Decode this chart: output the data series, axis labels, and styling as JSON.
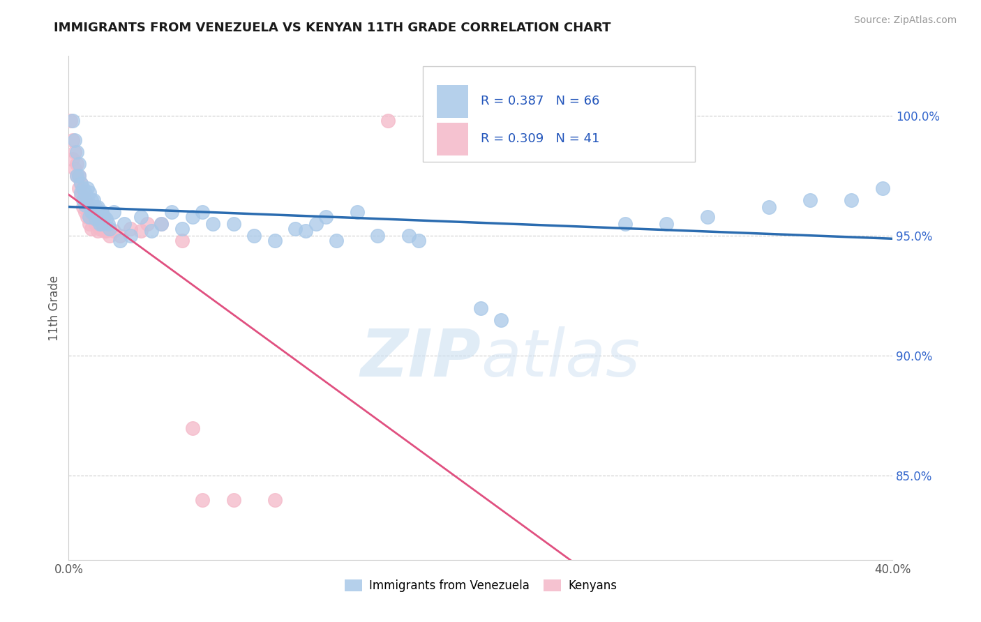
{
  "title": "IMMIGRANTS FROM VENEZUELA VS KENYAN 11TH GRADE CORRELATION CHART",
  "source": "Source: ZipAtlas.com",
  "ylabel": "11th Grade",
  "xlim": [
    0.0,
    0.4
  ],
  "ylim": [
    0.815,
    1.025
  ],
  "yticks_right": [
    1.0,
    0.95,
    0.9,
    0.85
  ],
  "yticklabels_right": [
    "100.0%",
    "95.0%",
    "90.0%",
    "85.0%"
  ],
  "watermark_zip": "ZIP",
  "watermark_atlas": "atlas",
  "blue_color": "#a8c8e8",
  "pink_color": "#f4b8c8",
  "blue_line_color": "#2b6cb0",
  "pink_line_color": "#e05080",
  "blue_scatter": [
    [
      0.002,
      0.998
    ],
    [
      0.003,
      0.99
    ],
    [
      0.004,
      0.985
    ],
    [
      0.004,
      0.975
    ],
    [
      0.005,
      0.98
    ],
    [
      0.005,
      0.975
    ],
    [
      0.006,
      0.972
    ],
    [
      0.006,
      0.968
    ],
    [
      0.007,
      0.97
    ],
    [
      0.007,
      0.965
    ],
    [
      0.008,
      0.968
    ],
    [
      0.008,
      0.963
    ],
    [
      0.009,
      0.97
    ],
    [
      0.009,
      0.965
    ],
    [
      0.01,
      0.968
    ],
    [
      0.01,
      0.963
    ],
    [
      0.01,
      0.958
    ],
    [
      0.011,
      0.965
    ],
    [
      0.011,
      0.96
    ],
    [
      0.012,
      0.965
    ],
    [
      0.012,
      0.96
    ],
    [
      0.013,
      0.962
    ],
    [
      0.013,
      0.957
    ],
    [
      0.014,
      0.962
    ],
    [
      0.014,
      0.958
    ],
    [
      0.015,
      0.96
    ],
    [
      0.015,
      0.955
    ],
    [
      0.016,
      0.96
    ],
    [
      0.016,
      0.955
    ],
    [
      0.017,
      0.958
    ],
    [
      0.018,
      0.957
    ],
    [
      0.019,
      0.955
    ],
    [
      0.02,
      0.953
    ],
    [
      0.022,
      0.96
    ],
    [
      0.025,
      0.948
    ],
    [
      0.027,
      0.955
    ],
    [
      0.03,
      0.95
    ],
    [
      0.035,
      0.958
    ],
    [
      0.04,
      0.952
    ],
    [
      0.045,
      0.955
    ],
    [
      0.05,
      0.96
    ],
    [
      0.055,
      0.953
    ],
    [
      0.06,
      0.958
    ],
    [
      0.065,
      0.96
    ],
    [
      0.07,
      0.955
    ],
    [
      0.08,
      0.955
    ],
    [
      0.09,
      0.95
    ],
    [
      0.1,
      0.948
    ],
    [
      0.11,
      0.953
    ],
    [
      0.115,
      0.952
    ],
    [
      0.12,
      0.955
    ],
    [
      0.125,
      0.958
    ],
    [
      0.13,
      0.948
    ],
    [
      0.14,
      0.96
    ],
    [
      0.15,
      0.95
    ],
    [
      0.165,
      0.95
    ],
    [
      0.17,
      0.948
    ],
    [
      0.2,
      0.92
    ],
    [
      0.21,
      0.915
    ],
    [
      0.27,
      0.955
    ],
    [
      0.29,
      0.955
    ],
    [
      0.31,
      0.958
    ],
    [
      0.34,
      0.962
    ],
    [
      0.36,
      0.965
    ],
    [
      0.38,
      0.965
    ],
    [
      0.395,
      0.97
    ]
  ],
  "pink_scatter": [
    [
      0.001,
      0.998
    ],
    [
      0.002,
      0.99
    ],
    [
      0.002,
      0.982
    ],
    [
      0.003,
      0.985
    ],
    [
      0.003,
      0.978
    ],
    [
      0.004,
      0.98
    ],
    [
      0.004,
      0.975
    ],
    [
      0.005,
      0.975
    ],
    [
      0.005,
      0.97
    ],
    [
      0.006,
      0.972
    ],
    [
      0.006,
      0.967
    ],
    [
      0.007,
      0.968
    ],
    [
      0.007,
      0.962
    ],
    [
      0.008,
      0.965
    ],
    [
      0.008,
      0.96
    ],
    [
      0.009,
      0.963
    ],
    [
      0.009,
      0.958
    ],
    [
      0.01,
      0.96
    ],
    [
      0.01,
      0.955
    ],
    [
      0.011,
      0.958
    ],
    [
      0.011,
      0.953
    ],
    [
      0.012,
      0.957
    ],
    [
      0.013,
      0.955
    ],
    [
      0.014,
      0.952
    ],
    [
      0.015,
      0.953
    ],
    [
      0.016,
      0.953
    ],
    [
      0.017,
      0.952
    ],
    [
      0.018,
      0.952
    ],
    [
      0.02,
      0.95
    ],
    [
      0.022,
      0.952
    ],
    [
      0.025,
      0.95
    ],
    [
      0.03,
      0.953
    ],
    [
      0.035,
      0.952
    ],
    [
      0.038,
      0.955
    ],
    [
      0.045,
      0.955
    ],
    [
      0.055,
      0.948
    ],
    [
      0.06,
      0.87
    ],
    [
      0.065,
      0.84
    ],
    [
      0.08,
      0.84
    ],
    [
      0.1,
      0.84
    ],
    [
      0.155,
      0.998
    ]
  ]
}
